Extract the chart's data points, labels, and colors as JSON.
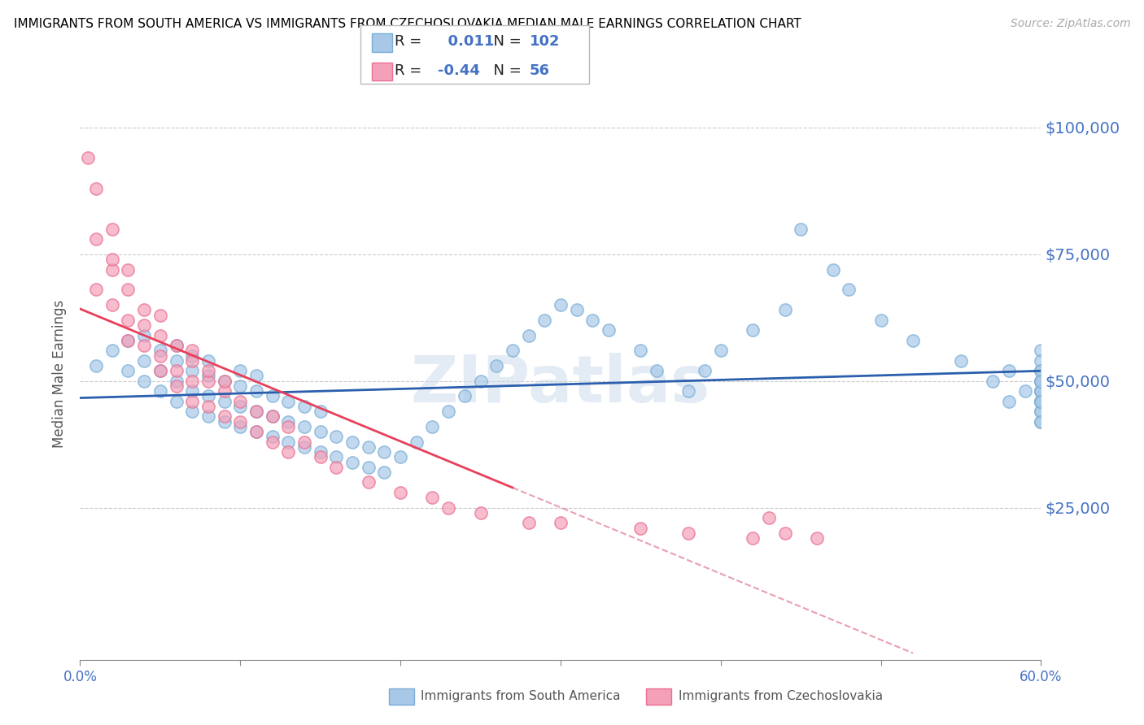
{
  "title": "IMMIGRANTS FROM SOUTH AMERICA VS IMMIGRANTS FROM CZECHOSLOVAKIA MEDIAN MALE EARNINGS CORRELATION CHART",
  "source": "Source: ZipAtlas.com",
  "blue_R": 0.011,
  "blue_N": 102,
  "pink_R": -0.44,
  "pink_N": 56,
  "ylabel": "Median Male Earnings",
  "xmin": 0.0,
  "xmax": 0.6,
  "ymin": -5000,
  "ymax": 108000,
  "yticks": [
    25000,
    50000,
    75000,
    100000
  ],
  "ytick_labels": [
    "$25,000",
    "$50,000",
    "$75,000",
    "$100,000"
  ],
  "blue_color": "#a8c8e8",
  "blue_edge_color": "#7aaed6",
  "pink_color": "#f4a0b8",
  "pink_edge_color": "#e87090",
  "blue_line_color": "#2b5fad",
  "pink_line_color": "#e8405a",
  "pink_dash_color": "#e8a0b0",
  "legend_label_blue": "Immigrants from South America",
  "legend_label_pink": "Immigrants from Czechoslovakia",
  "watermark": "ZIPatlas",
  "blue_scatter_x": [
    0.01,
    0.02,
    0.03,
    0.03,
    0.04,
    0.04,
    0.04,
    0.05,
    0.05,
    0.05,
    0.06,
    0.06,
    0.06,
    0.06,
    0.07,
    0.07,
    0.07,
    0.07,
    0.08,
    0.08,
    0.08,
    0.08,
    0.09,
    0.09,
    0.09,
    0.1,
    0.1,
    0.1,
    0.1,
    0.11,
    0.11,
    0.11,
    0.11,
    0.12,
    0.12,
    0.12,
    0.13,
    0.13,
    0.13,
    0.14,
    0.14,
    0.14,
    0.15,
    0.15,
    0.15,
    0.16,
    0.16,
    0.17,
    0.17,
    0.18,
    0.18,
    0.19,
    0.19,
    0.2,
    0.21,
    0.22,
    0.23,
    0.24,
    0.25,
    0.26,
    0.27,
    0.28,
    0.29,
    0.3,
    0.31,
    0.32,
    0.33,
    0.35,
    0.36,
    0.38,
    0.39,
    0.4,
    0.42,
    0.44,
    0.45,
    0.47,
    0.48,
    0.5,
    0.52,
    0.55,
    0.57,
    0.58,
    0.58,
    0.59,
    0.6,
    0.6,
    0.6,
    0.6,
    0.6,
    0.6,
    0.6,
    0.6,
    0.6,
    0.6,
    0.6,
    0.6,
    0.6,
    0.6,
    0.6,
    0.6,
    0.6,
    0.6
  ],
  "blue_scatter_y": [
    53000,
    56000,
    52000,
    58000,
    50000,
    54000,
    59000,
    48000,
    52000,
    56000,
    46000,
    50000,
    54000,
    57000,
    44000,
    48000,
    52000,
    55000,
    43000,
    47000,
    51000,
    54000,
    42000,
    46000,
    50000,
    41000,
    45000,
    49000,
    52000,
    40000,
    44000,
    48000,
    51000,
    39000,
    43000,
    47000,
    38000,
    42000,
    46000,
    37000,
    41000,
    45000,
    36000,
    40000,
    44000,
    35000,
    39000,
    34000,
    38000,
    33000,
    37000,
    32000,
    36000,
    35000,
    38000,
    41000,
    44000,
    47000,
    50000,
    53000,
    56000,
    59000,
    62000,
    65000,
    64000,
    62000,
    60000,
    56000,
    52000,
    48000,
    52000,
    56000,
    60000,
    64000,
    80000,
    72000,
    68000,
    62000,
    58000,
    54000,
    50000,
    46000,
    52000,
    48000,
    44000,
    48000,
    52000,
    56000,
    46000,
    42000,
    46000,
    50000,
    44000,
    48000,
    42000,
    46000,
    50000,
    54000,
    48000,
    52000,
    46000,
    50000
  ],
  "pink_scatter_x": [
    0.005,
    0.01,
    0.01,
    0.01,
    0.02,
    0.02,
    0.02,
    0.02,
    0.03,
    0.03,
    0.03,
    0.03,
    0.04,
    0.04,
    0.04,
    0.05,
    0.05,
    0.05,
    0.05,
    0.06,
    0.06,
    0.06,
    0.07,
    0.07,
    0.07,
    0.07,
    0.08,
    0.08,
    0.08,
    0.09,
    0.09,
    0.09,
    0.1,
    0.1,
    0.11,
    0.11,
    0.12,
    0.12,
    0.13,
    0.13,
    0.14,
    0.15,
    0.16,
    0.18,
    0.2,
    0.22,
    0.23,
    0.25,
    0.28,
    0.3,
    0.35,
    0.38,
    0.42,
    0.43,
    0.44,
    0.46
  ],
  "pink_scatter_y": [
    94000,
    88000,
    78000,
    68000,
    80000,
    72000,
    65000,
    74000,
    68000,
    62000,
    72000,
    58000,
    64000,
    57000,
    61000,
    63000,
    55000,
    59000,
    52000,
    57000,
    52000,
    49000,
    56000,
    50000,
    46000,
    54000,
    50000,
    45000,
    52000,
    48000,
    43000,
    50000,
    46000,
    42000,
    44000,
    40000,
    43000,
    38000,
    41000,
    36000,
    38000,
    35000,
    33000,
    30000,
    28000,
    27000,
    25000,
    24000,
    22000,
    22000,
    21000,
    20000,
    19000,
    23000,
    20000,
    19000
  ]
}
